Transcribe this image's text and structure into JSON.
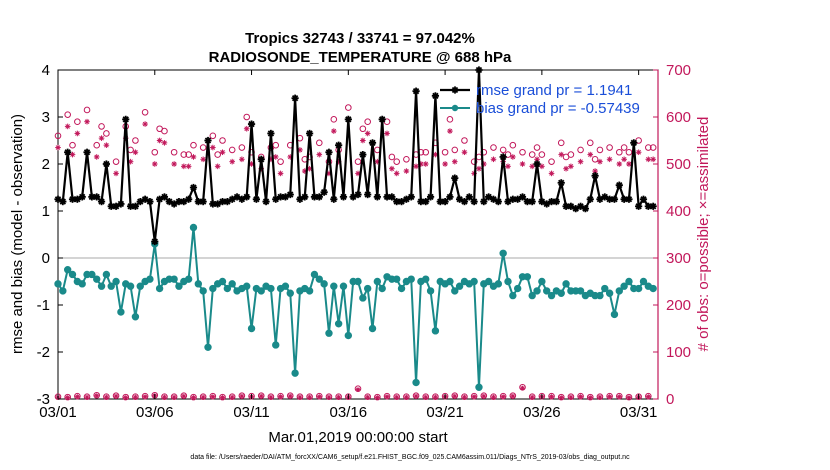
{
  "chart_data": {
    "type": "line",
    "title": "Tropics 32743 / 33741 = 97.042%",
    "subtitle": "RADIOSONDE_TEMPERATURE @ 688 hPa",
    "xlabel": "Mar.01,2019 00:00:00 start",
    "ylabel_left": "rmse and bias (model - observation)",
    "ylabel_right": "# of obs: o=possible; ×=assimilated",
    "footnote": "data file: /Users/raeder/DAI/ATM_forcXX/CAM6_setup/f.e21.FHIST_BGC.f09_025.CAM6assim.011/Diags_NTrS_2019-03/obs_diag_output.nc",
    "xlim": [
      0,
      31
    ],
    "ylim_left": [
      -3,
      4
    ],
    "ylim_right": [
      0,
      700
    ],
    "x_ticks": [
      0,
      5,
      10,
      15,
      20,
      25,
      30
    ],
    "x_tick_labels": [
      "03/01",
      "03/06",
      "03/11",
      "03/16",
      "03/21",
      "03/26",
      "03/31"
    ],
    "y_ticks_left": [
      -3,
      -2,
      -1,
      0,
      1,
      2,
      3,
      4
    ],
    "y_tick_labels_left": [
      "-3",
      "-2",
      "-1",
      "0",
      "1",
      "2",
      "3",
      "4"
    ],
    "y_ticks_right": [
      0,
      100,
      200,
      300,
      400,
      500,
      600,
      700
    ],
    "y_tick_labels_right": [
      "0",
      "100",
      "200",
      "300",
      "400",
      "500",
      "600",
      "700"
    ],
    "zero_line": 0,
    "x": [
      0.0,
      0.25,
      0.5,
      0.75,
      1.0,
      1.25,
      1.5,
      1.75,
      2.0,
      2.25,
      2.5,
      2.75,
      3.0,
      3.25,
      3.5,
      3.75,
      4.0,
      4.25,
      4.5,
      4.75,
      5.0,
      5.25,
      5.5,
      5.75,
      6.0,
      6.25,
      6.5,
      6.75,
      7.0,
      7.25,
      7.5,
      7.75,
      8.0,
      8.25,
      8.5,
      8.75,
      9.0,
      9.25,
      9.5,
      9.75,
      10.0,
      10.25,
      10.5,
      10.75,
      11.0,
      11.25,
      11.5,
      11.75,
      12.0,
      12.25,
      12.5,
      12.75,
      13.0,
      13.25,
      13.5,
      13.75,
      14.0,
      14.25,
      14.5,
      14.75,
      15.0,
      15.25,
      15.5,
      15.75,
      16.0,
      16.25,
      16.5,
      16.75,
      17.0,
      17.25,
      17.5,
      17.75,
      18.0,
      18.25,
      18.5,
      18.75,
      19.0,
      19.25,
      19.5,
      19.75,
      20.0,
      20.25,
      20.5,
      20.75,
      21.0,
      21.25,
      21.5,
      21.75,
      22.0,
      22.25,
      22.5,
      22.75,
      23.0,
      23.25,
      23.5,
      23.75,
      24.0,
      24.25,
      24.5,
      24.75,
      25.0,
      25.25,
      25.5,
      25.75,
      26.0,
      26.25,
      26.5,
      26.75,
      27.0,
      27.25,
      27.5,
      27.75,
      28.0,
      28.25,
      28.5,
      28.75,
      29.0,
      29.25,
      29.5,
      29.75,
      30.0,
      30.25,
      30.5,
      30.75
    ],
    "series": [
      {
        "name": "rmse grand pr = 1.1941",
        "color": "#000000",
        "marker": "star",
        "axis": "left",
        "values": [
          1.25,
          1.2,
          2.25,
          1.25,
          1.25,
          1.3,
          2.25,
          1.3,
          1.3,
          1.2,
          2.0,
          1.1,
          1.1,
          1.15,
          2.95,
          1.1,
          1.1,
          1.2,
          1.25,
          1.2,
          0.35,
          1.25,
          1.3,
          1.2,
          1.15,
          1.2,
          1.2,
          1.25,
          1.5,
          1.2,
          1.2,
          2.5,
          1.15,
          1.15,
          1.2,
          1.2,
          1.25,
          1.3,
          1.25,
          1.3,
          2.85,
          1.25,
          2.1,
          1.2,
          2.65,
          1.25,
          1.3,
          1.3,
          1.35,
          3.4,
          1.25,
          1.3,
          2.65,
          1.3,
          1.3,
          1.4,
          2.25,
          1.25,
          2.4,
          1.3,
          2.95,
          1.3,
          1.35,
          2.2,
          1.35,
          2.45,
          1.3,
          2.95,
          1.3,
          1.3,
          1.2,
          1.2,
          1.25,
          1.3,
          3.55,
          1.2,
          1.2,
          1.3,
          3.45,
          1.2,
          1.2,
          1.3,
          1.7,
          1.25,
          1.2,
          1.3,
          1.2,
          4.0,
          1.2,
          1.3,
          1.25,
          1.2,
          2.15,
          1.2,
          1.25,
          1.25,
          1.3,
          1.2,
          1.2,
          2.0,
          1.2,
          1.15,
          1.2,
          1.2,
          1.6,
          1.1,
          1.1,
          1.05,
          1.1,
          1.05,
          1.25,
          1.75,
          1.25,
          1.3,
          1.25,
          1.25,
          1.55,
          1.25,
          1.25,
          2.45,
          1.1,
          1.25,
          1.1,
          1.1
        ]
      },
      {
        "name": "bias grand pr = -0.57439",
        "color": "#1a8a8a",
        "marker": "circle",
        "axis": "left",
        "values": [
          -0.55,
          -0.7,
          -0.25,
          -0.35,
          -0.5,
          -0.55,
          -0.35,
          -0.35,
          -0.45,
          -0.6,
          -0.35,
          -0.6,
          -0.5,
          -1.15,
          -0.55,
          -0.6,
          -1.25,
          -0.6,
          -0.5,
          -0.45,
          0.3,
          -0.65,
          -0.5,
          -0.45,
          -0.45,
          -0.6,
          -0.5,
          -0.45,
          0.65,
          -0.55,
          -0.7,
          -1.9,
          -0.65,
          -0.55,
          -0.5,
          -0.65,
          -0.55,
          -0.7,
          -0.65,
          -0.6,
          -1.5,
          -0.65,
          -0.7,
          -0.6,
          -0.65,
          -1.85,
          -0.65,
          -0.6,
          -0.75,
          -2.45,
          -0.7,
          -0.65,
          -0.7,
          -0.35,
          -0.45,
          -0.55,
          -1.6,
          -0.6,
          -1.4,
          -0.6,
          -1.65,
          -0.5,
          -0.5,
          -0.85,
          -0.65,
          -1.5,
          -0.5,
          -0.65,
          -0.4,
          -0.45,
          -0.45,
          -0.65,
          -0.5,
          -0.45,
          -2.65,
          -0.5,
          -0.45,
          -0.7,
          -1.55,
          -0.5,
          -0.55,
          -0.5,
          -0.7,
          -0.6,
          -0.5,
          -0.55,
          -0.5,
          -2.75,
          -0.55,
          -0.5,
          -0.6,
          -0.55,
          0.1,
          -0.5,
          -0.8,
          -0.65,
          -0.4,
          -0.4,
          -0.8,
          -0.7,
          -0.5,
          -0.7,
          -0.8,
          -0.7,
          -0.75,
          -0.55,
          -0.7,
          -0.7,
          -0.7,
          -0.8,
          -0.75,
          -0.8,
          -0.8,
          -0.65,
          -0.75,
          -1.2,
          -0.7,
          -0.6,
          -0.5,
          -0.65,
          -0.65,
          -0.5,
          -0.6,
          -0.65
        ]
      },
      {
        "name": "obs possible",
        "color": "#c2185b",
        "marker": "open-circle",
        "axis": "right",
        "values": [
          5,
          6,
          4,
          5,
          6,
          7,
          5,
          4,
          8,
          6,
          5,
          6,
          7,
          5,
          4,
          6,
          5,
          7,
          6,
          5,
          8,
          6,
          5,
          4,
          5,
          6,
          7,
          5,
          4,
          6,
          5,
          7,
          6,
          5,
          4,
          6,
          5,
          6,
          7,
          5,
          6,
          5,
          7,
          6,
          5,
          4,
          6,
          5,
          7,
          6,
          5,
          6,
          5,
          4,
          6,
          7,
          5,
          6,
          5,
          6,
          5,
          7,
          22,
          6,
          5,
          6,
          4,
          5,
          6,
          7,
          5,
          6,
          5,
          4,
          7,
          6,
          5,
          6,
          5,
          4,
          6,
          5,
          7,
          6,
          5,
          4,
          6,
          5,
          7,
          6,
          5,
          4,
          6,
          5,
          7,
          6,
          25,
          6,
          5,
          7,
          6,
          5,
          6,
          5,
          4,
          6,
          5,
          7,
          6,
          5,
          4,
          6,
          5,
          7,
          6,
          5,
          6,
          5,
          4,
          6,
          5,
          7,
          6,
          5
        ]
      },
      {
        "name": "obs assimilated",
        "color": "#c2185b",
        "marker": "star",
        "axis": "right",
        "values": [
          4,
          5,
          3,
          4,
          5,
          6,
          4,
          3,
          7,
          5,
          4,
          5,
          6,
          4,
          3,
          5,
          4,
          6,
          5,
          4,
          7,
          5,
          4,
          3,
          4,
          5,
          6,
          4,
          3,
          5,
          4,
          6,
          5,
          4,
          3,
          5,
          4,
          5,
          6,
          4,
          5,
          4,
          6,
          5,
          4,
          3,
          5,
          4,
          6,
          5,
          4,
          5,
          4,
          3,
          5,
          6,
          4,
          5,
          4,
          5,
          4,
          6,
          20,
          5,
          4,
          5,
          3,
          4,
          5,
          6,
          4,
          5,
          4,
          3,
          6,
          5,
          4,
          5,
          4,
          3,
          5,
          4,
          6,
          5,
          4,
          3,
          5,
          4,
          6,
          5,
          4,
          3,
          5,
          4,
          6,
          5,
          23,
          5,
          4,
          6,
          5,
          4,
          5,
          4,
          3,
          5,
          4,
          6,
          5,
          4,
          3,
          5,
          4,
          6,
          5,
          4,
          5,
          4,
          3,
          5,
          4,
          6,
          5,
          4
        ]
      }
    ],
    "obs_possible_daily": [
      560,
      540,
      605,
      540,
      590,
      535,
      615,
      505,
      540,
      580,
      565,
      510,
      505,
      600,
      580,
      530,
      550,
      540,
      610,
      560,
      525,
      575,
      570,
      565,
      525,
      510,
      520,
      520,
      540,
      505,
      535,
      520,
      560,
      520,
      550,
      530,
      530,
      530,
      535,
      600,
      525,
      540,
      515,
      620,
      535,
      540,
      505,
      520,
      540,
      520,
      555,
      510,
      515,
      580,
      545,
      525,
      505,
      595,
      530,
      510,
      620,
      560,
      505,
      575,
      590,
      505,
      530,
      520,
      590,
      515,
      505,
      525,
      510,
      610,
      520,
      525,
      525,
      550,
      545,
      610,
      525,
      595,
      530,
      590,
      550,
      540,
      505,
      515,
      525,
      520,
      535,
      520,
      530,
      520,
      540,
      535,
      525,
      605,
      520,
      535,
      520,
      515,
      505,
      535,
      545,
      515,
      520,
      560,
      530,
      520,
      545,
      510,
      530,
      525,
      535,
      520,
      525,
      535,
      525,
      540,
      550,
      540,
      535,
      535
    ],
    "obs_assimilated_daily": [
      535,
      520,
      580,
      520,
      565,
      510,
      590,
      480,
      515,
      555,
      540,
      485,
      480,
      575,
      555,
      505,
      525,
      515,
      585,
      535,
      500,
      550,
      545,
      540,
      500,
      485,
      495,
      495,
      515,
      480,
      510,
      495,
      535,
      495,
      525,
      505,
      505,
      505,
      510,
      575,
      500,
      515,
      490,
      595,
      510,
      515,
      480,
      495,
      515,
      495,
      530,
      485,
      490,
      555,
      520,
      500,
      480,
      570,
      505,
      485,
      595,
      535,
      480,
      550,
      565,
      480,
      505,
      495,
      565,
      490,
      480,
      500,
      485,
      585,
      495,
      500,
      500,
      525,
      520,
      585,
      500,
      570,
      505,
      565,
      525,
      515,
      480,
      490,
      500,
      495,
      510,
      495,
      505,
      495,
      515,
      510,
      500,
      580,
      495,
      510,
      495,
      490,
      480,
      510,
      520,
      490,
      495,
      535,
      505,
      495,
      520,
      485,
      505,
      500,
      510,
      495,
      500,
      510,
      500,
      515,
      525,
      515,
      510,
      510
    ],
    "legend": {
      "location": "top-right",
      "entries": [
        "rmse grand pr = 1.1941",
        "bias grand pr = -0.57439"
      ]
    }
  }
}
